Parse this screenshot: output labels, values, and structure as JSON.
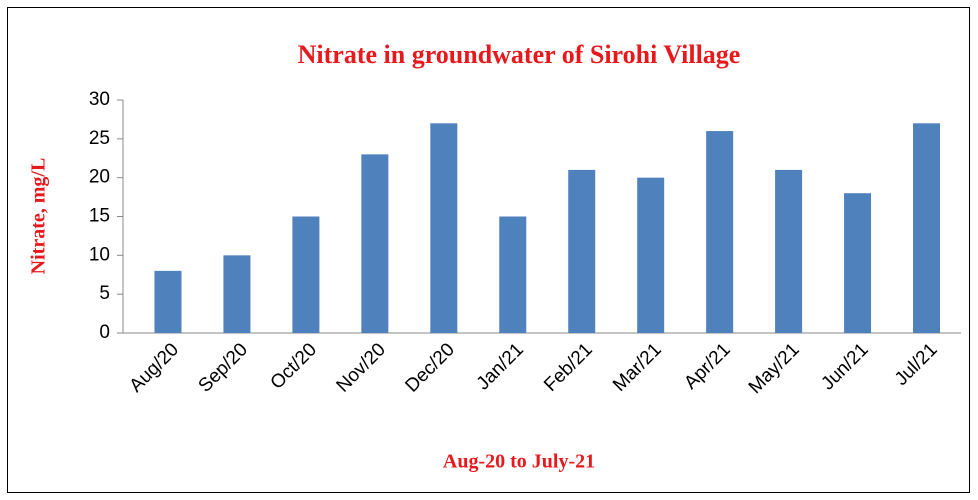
{
  "chart_data": {
    "type": "bar",
    "title": "Nitrate in groundwater of Sirohi Village",
    "x_label": "Aug-20 to July-21",
    "y_label": "Nitrate, mg/L",
    "categories": [
      "Aug/20",
      "Sep/20",
      "Oct/20",
      "Nov/20",
      "Dec/20",
      "Jan/21",
      "Feb/21",
      "Mar/21",
      "Apr/21",
      "May/21",
      "Jun/21",
      "Jul/21"
    ],
    "values": [
      8,
      10,
      15,
      23,
      27,
      15,
      21,
      20,
      26,
      21,
      18,
      27
    ],
    "color": "#4f81bd",
    "ylim": [
      0,
      30
    ],
    "yticks": [
      0,
      5,
      10,
      15,
      20,
      25,
      30
    ],
    "grid": false
  }
}
